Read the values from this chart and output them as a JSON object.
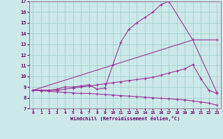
{
  "bg_color": "#cce8e8",
  "grid_color": "#99cccc",
  "line_color": "#993399",
  "line_width": 0.8,
  "marker": "+",
  "marker_size": 3.5,
  "marker_ew": 0.8,
  "xlim": [
    -0.5,
    23.5
  ],
  "ylim": [
    7,
    17
  ],
  "xticks": [
    0,
    1,
    2,
    3,
    4,
    5,
    6,
    7,
    8,
    9,
    10,
    11,
    12,
    13,
    14,
    15,
    16,
    17,
    18,
    19,
    20,
    21,
    22,
    23
  ],
  "yticks": [
    7,
    8,
    9,
    10,
    11,
    12,
    13,
    14,
    15,
    16,
    17
  ],
  "xlabel": "Windchill (Refroidissement éolien,°C)",
  "series": [
    {
      "x": [
        0,
        1,
        2,
        3,
        4,
        5,
        6,
        7,
        8,
        9,
        10,
        11,
        12,
        13,
        14,
        15,
        16,
        17,
        20,
        23
      ],
      "y": [
        8.7,
        8.7,
        8.7,
        8.8,
        9.0,
        9.0,
        9.1,
        9.2,
        8.8,
        8.9,
        11.1,
        13.2,
        14.4,
        15.0,
        15.5,
        16.0,
        16.7,
        17.0,
        13.4,
        8.5
      ]
    },
    {
      "x": [
        0,
        20,
        23
      ],
      "y": [
        8.7,
        13.4,
        13.4
      ]
    },
    {
      "x": [
        0,
        1,
        2,
        3,
        4,
        5,
        6,
        7,
        8,
        9,
        10,
        11,
        12,
        13,
        14,
        15,
        16,
        17,
        18,
        19,
        20,
        21,
        22,
        23
      ],
      "y": [
        8.7,
        8.7,
        8.7,
        8.7,
        8.8,
        8.9,
        9.0,
        9.1,
        9.2,
        9.3,
        9.4,
        9.5,
        9.6,
        9.7,
        9.8,
        9.9,
        10.1,
        10.3,
        10.5,
        10.7,
        11.1,
        9.8,
        8.7,
        8.4
      ]
    },
    {
      "x": [
        0,
        1,
        2,
        3,
        4,
        5,
        6,
        7,
        8,
        9,
        10,
        11,
        12,
        13,
        14,
        15,
        16,
        17,
        18,
        19,
        20,
        21,
        22,
        23
      ],
      "y": [
        8.7,
        8.65,
        8.6,
        8.55,
        8.5,
        8.45,
        8.4,
        8.4,
        8.35,
        8.3,
        8.25,
        8.2,
        8.15,
        8.1,
        8.05,
        8.0,
        7.95,
        7.9,
        7.85,
        7.8,
        7.7,
        7.6,
        7.5,
        7.3
      ]
    }
  ]
}
